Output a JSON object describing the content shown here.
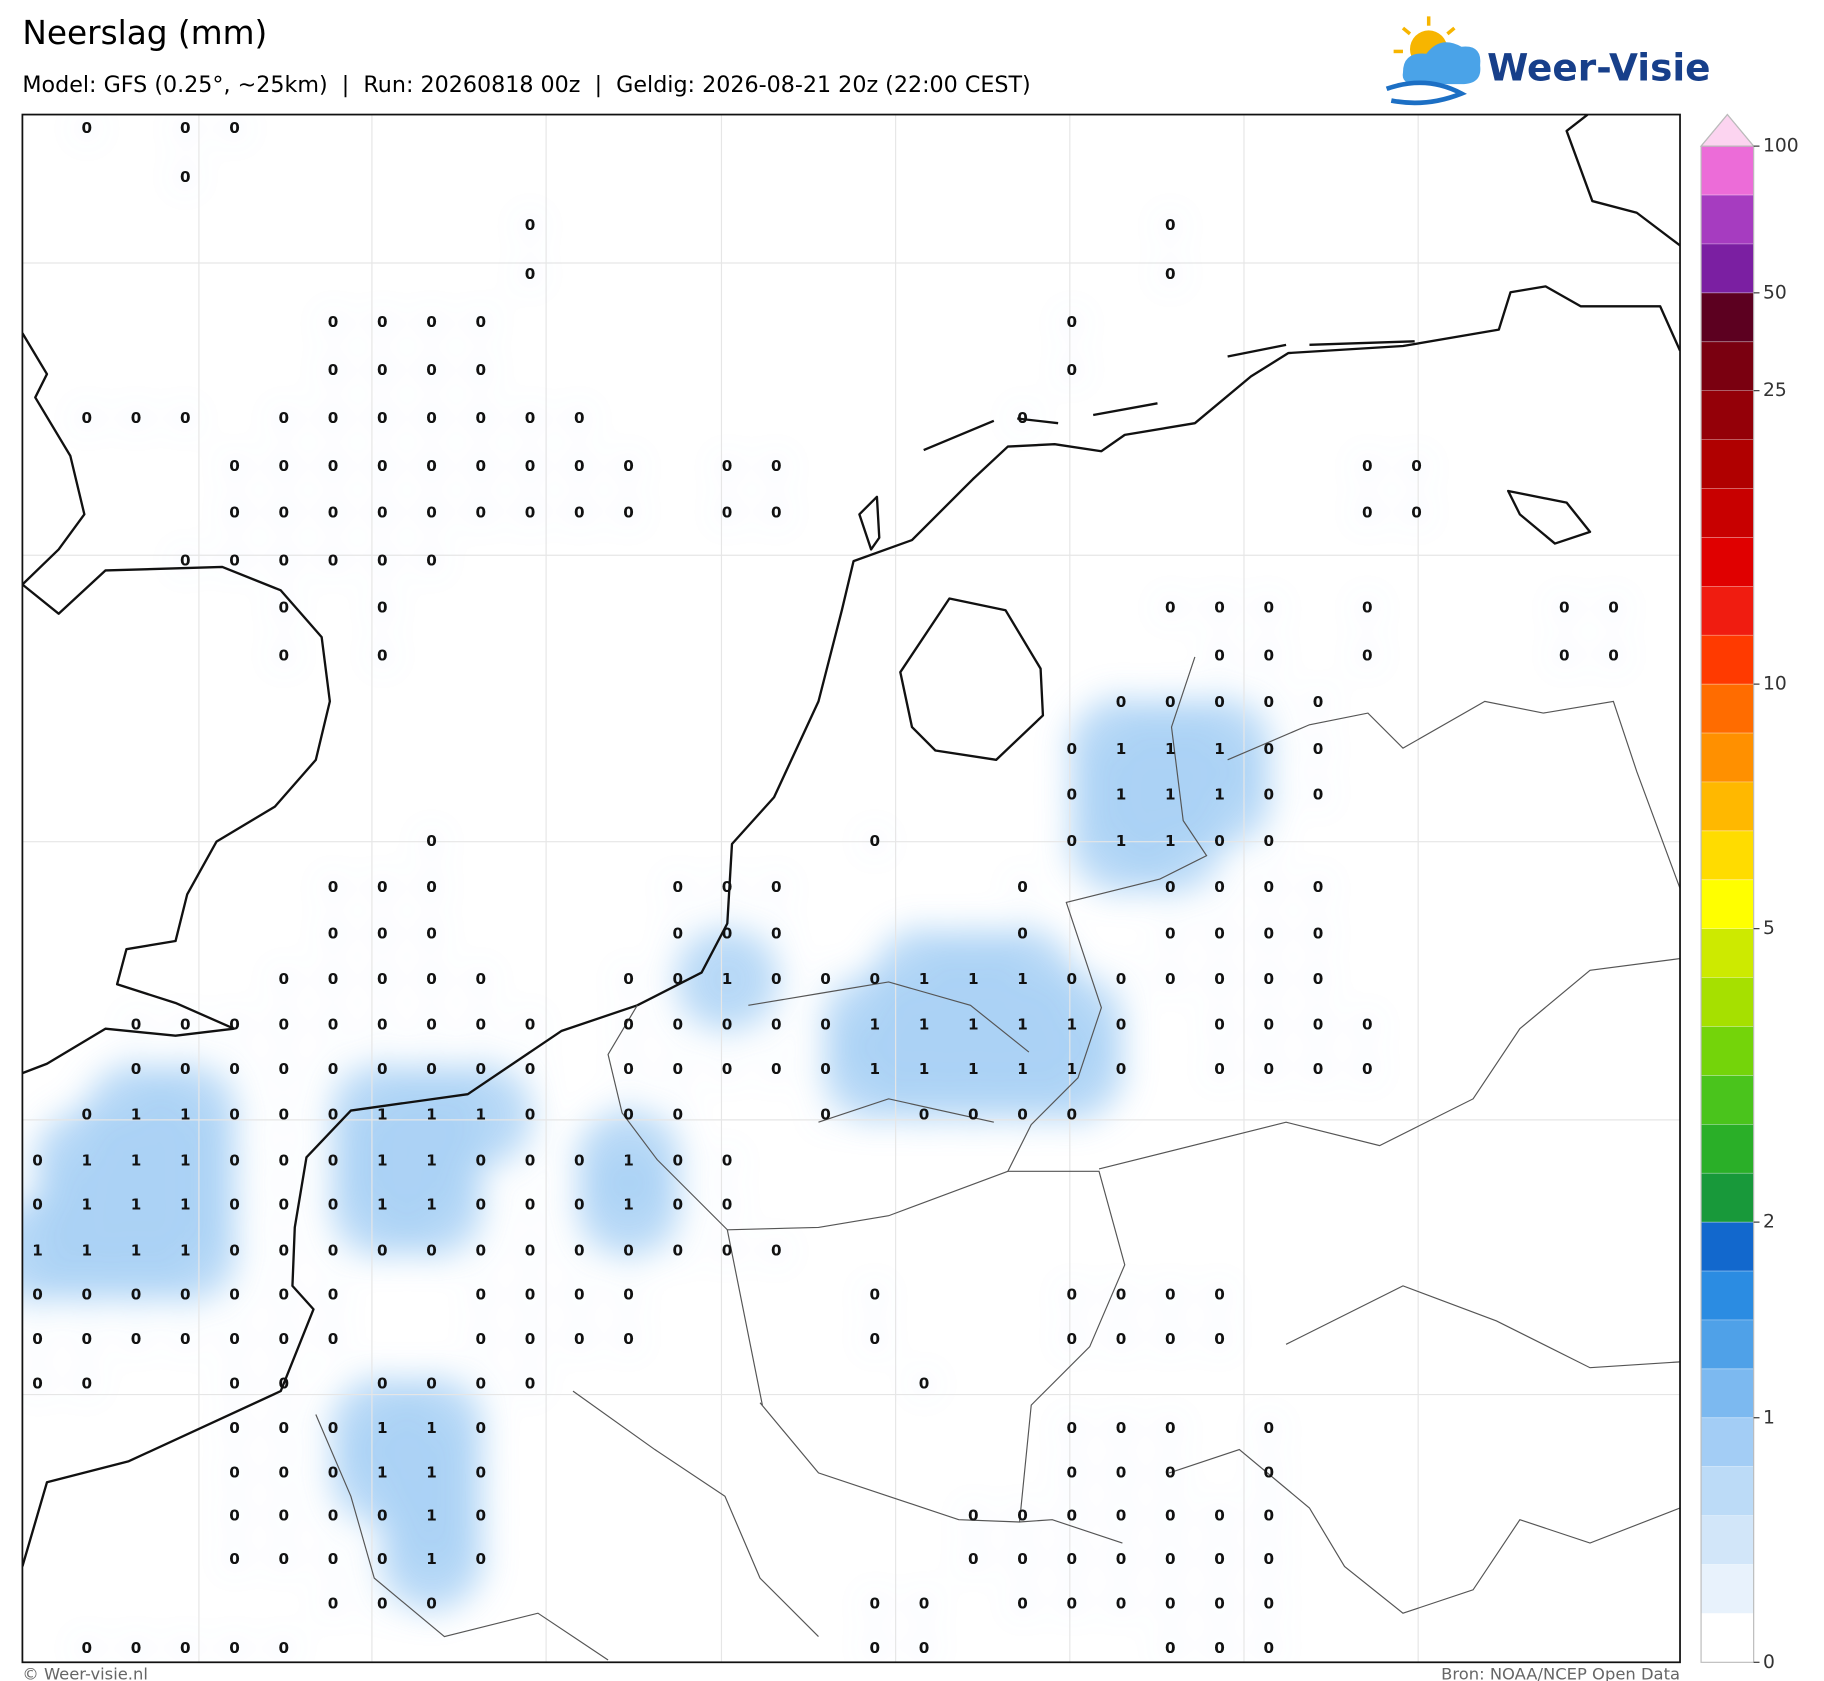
{
  "header": {
    "title": "Neerslag (mm)",
    "subtitle": "Model: GFS (0.25°, ~25km)  |  Run: 20260818 00z  |  Geldig: 2026-08-21 20z (22:00 CEST)",
    "logo": "Weer-Visie"
  },
  "footer": {
    "left": "© Weer-visie.nl",
    "right": "Bron: NOAA/NCEP Open Data"
  },
  "map": {
    "shade_color": "#8fc3f2",
    "grid": [
      [
        null,
        0,
        null,
        0,
        0,
        null,
        null,
        null,
        null,
        null,
        null,
        null,
        null,
        null,
        null,
        null,
        null,
        null,
        null,
        null,
        null,
        null,
        null,
        null,
        null,
        null,
        null,
        null,
        null,
        null,
        null,
        null,
        null
      ],
      [
        null,
        null,
        null,
        0,
        null,
        null,
        null,
        null,
        null,
        null,
        null,
        null,
        null,
        null,
        null,
        null,
        null,
        null,
        null,
        null,
        null,
        null,
        null,
        null,
        null,
        null,
        null,
        null,
        null,
        null,
        null,
        null,
        null
      ],
      [
        null,
        null,
        null,
        null,
        null,
        null,
        null,
        null,
        null,
        null,
        0,
        null,
        null,
        null,
        null,
        null,
        null,
        null,
        null,
        null,
        null,
        null,
        null,
        0,
        null,
        null,
        null,
        null,
        null,
        null,
        null,
        null,
        null
      ],
      [
        null,
        null,
        null,
        null,
        null,
        null,
        null,
        null,
        null,
        null,
        0,
        null,
        null,
        null,
        null,
        null,
        null,
        null,
        null,
        null,
        null,
        null,
        null,
        0,
        null,
        null,
        null,
        null,
        null,
        null,
        null,
        null,
        null
      ],
      [
        null,
        null,
        null,
        null,
        null,
        null,
        0,
        0,
        0,
        0,
        null,
        null,
        null,
        null,
        null,
        null,
        null,
        null,
        null,
        null,
        null,
        0,
        null,
        null,
        null,
        null,
        null,
        null,
        null,
        null,
        null,
        null,
        null
      ],
      [
        null,
        null,
        null,
        null,
        null,
        null,
        0,
        0,
        0,
        0,
        null,
        null,
        null,
        null,
        null,
        null,
        null,
        null,
        null,
        null,
        null,
        0,
        null,
        null,
        null,
        null,
        null,
        null,
        null,
        null,
        null,
        null,
        null
      ],
      [
        null,
        0,
        0,
        0,
        null,
        0,
        0,
        0,
        0,
        0,
        0,
        0,
        null,
        null,
        null,
        null,
        null,
        null,
        null,
        null,
        0,
        null,
        null,
        null,
        null,
        null,
        null,
        null,
        null,
        null,
        null,
        null,
        null
      ],
      [
        null,
        null,
        null,
        null,
        0,
        0,
        0,
        0,
        0,
        0,
        0,
        0,
        0,
        null,
        0,
        0,
        null,
        null,
        null,
        null,
        null,
        null,
        null,
        null,
        null,
        null,
        null,
        0,
        0,
        null,
        null,
        null,
        null
      ],
      [
        null,
        null,
        null,
        null,
        0,
        0,
        0,
        0,
        0,
        0,
        0,
        0,
        0,
        null,
        0,
        0,
        null,
        null,
        null,
        null,
        null,
        null,
        null,
        null,
        null,
        null,
        null,
        0,
        0,
        null,
        null,
        null,
        null
      ],
      [
        null,
        null,
        null,
        0,
        0,
        0,
        0,
        0,
        0,
        null,
        null,
        null,
        null,
        null,
        null,
        null,
        null,
        null,
        null,
        null,
        null,
        null,
        null,
        null,
        null,
        null,
        null,
        null,
        null,
        null,
        null,
        null,
        null
      ],
      [
        null,
        null,
        null,
        null,
        null,
        0,
        null,
        0,
        null,
        null,
        null,
        null,
        null,
        null,
        null,
        null,
        null,
        null,
        null,
        null,
        null,
        null,
        null,
        0,
        0,
        0,
        null,
        0,
        null,
        null,
        null,
        0,
        0
      ],
      [
        null,
        null,
        null,
        null,
        null,
        0,
        null,
        0,
        null,
        null,
        null,
        null,
        null,
        null,
        null,
        null,
        null,
        null,
        null,
        null,
        null,
        null,
        null,
        null,
        0,
        0,
        null,
        0,
        null,
        null,
        null,
        0,
        0
      ],
      [
        null,
        null,
        null,
        null,
        null,
        null,
        null,
        null,
        null,
        null,
        null,
        null,
        null,
        null,
        null,
        null,
        null,
        null,
        null,
        null,
        null,
        null,
        0,
        0,
        0,
        0,
        0,
        null,
        null,
        null,
        null,
        null,
        null
      ],
      [
        null,
        null,
        null,
        null,
        null,
        null,
        null,
        null,
        null,
        null,
        null,
        null,
        null,
        null,
        null,
        null,
        null,
        null,
        null,
        null,
        null,
        0,
        1,
        1,
        1,
        0,
        0,
        null,
        null,
        null,
        null,
        null,
        null
      ],
      [
        null,
        null,
        null,
        null,
        null,
        null,
        null,
        null,
        null,
        null,
        null,
        null,
        null,
        null,
        null,
        null,
        null,
        null,
        null,
        null,
        null,
        0,
        1,
        1,
        1,
        0,
        0,
        null,
        null,
        null,
        null,
        null,
        null
      ],
      [
        null,
        null,
        null,
        null,
        null,
        null,
        null,
        null,
        0,
        null,
        null,
        null,
        null,
        null,
        null,
        null,
        null,
        0,
        null,
        null,
        null,
        0,
        1,
        1,
        0,
        0,
        null,
        null,
        null,
        null,
        null,
        null,
        null
      ],
      [
        null,
        null,
        null,
        null,
        null,
        null,
        0,
        0,
        0,
        null,
        null,
        null,
        null,
        0,
        0,
        0,
        null,
        null,
        null,
        null,
        0,
        null,
        null,
        0,
        0,
        0,
        0,
        null,
        null,
        null,
        null,
        null,
        null
      ],
      [
        null,
        null,
        null,
        null,
        null,
        null,
        0,
        0,
        0,
        null,
        null,
        null,
        null,
        0,
        0,
        0,
        null,
        null,
        null,
        null,
        0,
        null,
        null,
        0,
        0,
        0,
        0,
        null,
        null,
        null,
        null,
        null,
        null
      ],
      [
        null,
        null,
        null,
        null,
        null,
        0,
        0,
        0,
        0,
        0,
        null,
        null,
        0,
        0,
        1,
        0,
        0,
        0,
        1,
        1,
        1,
        0,
        0,
        0,
        0,
        0,
        0,
        null,
        null,
        null,
        null,
        null,
        null
      ],
      [
        null,
        null,
        0,
        0,
        0,
        0,
        0,
        0,
        0,
        0,
        0,
        null,
        0,
        0,
        0,
        0,
        0,
        1,
        1,
        1,
        1,
        1,
        0,
        null,
        0,
        0,
        0,
        0,
        null,
        null,
        null,
        null,
        null
      ],
      [
        null,
        null,
        0,
        0,
        0,
        0,
        0,
        0,
        0,
        0,
        0,
        null,
        0,
        0,
        0,
        0,
        0,
        1,
        1,
        1,
        1,
        1,
        0,
        null,
        0,
        0,
        0,
        0,
        null,
        null,
        null,
        null,
        null
      ],
      [
        null,
        0,
        1,
        1,
        0,
        0,
        0,
        1,
        1,
        1,
        0,
        null,
        0,
        0,
        null,
        null,
        0,
        null,
        0,
        0,
        0,
        0,
        null,
        null,
        null,
        null,
        null,
        null,
        null,
        null,
        null,
        null,
        null
      ],
      [
        0,
        1,
        1,
        1,
        0,
        0,
        0,
        1,
        1,
        0,
        0,
        0,
        1,
        0,
        0,
        null,
        null,
        null,
        null,
        null,
        null,
        null,
        null,
        null,
        null,
        null,
        null,
        null,
        null,
        null,
        null,
        null,
        null
      ],
      [
        0,
        1,
        1,
        1,
        0,
        0,
        0,
        1,
        1,
        0,
        0,
        0,
        1,
        0,
        0,
        null,
        null,
        null,
        null,
        null,
        null,
        null,
        null,
        null,
        null,
        null,
        null,
        null,
        null,
        null,
        null,
        null,
        null
      ],
      [
        1,
        1,
        1,
        1,
        0,
        0,
        0,
        0,
        0,
        0,
        0,
        0,
        0,
        0,
        0,
        0,
        null,
        null,
        null,
        null,
        null,
        null,
        null,
        null,
        null,
        null,
        null,
        null,
        null,
        null,
        null,
        null,
        null
      ],
      [
        0,
        0,
        0,
        0,
        0,
        0,
        0,
        null,
        null,
        0,
        0,
        0,
        0,
        null,
        null,
        null,
        null,
        0,
        null,
        null,
        null,
        0,
        0,
        0,
        0,
        null,
        null,
        null,
        null,
        null,
        null,
        null,
        null
      ],
      [
        0,
        0,
        0,
        0,
        0,
        0,
        0,
        null,
        null,
        0,
        0,
        0,
        0,
        null,
        null,
        null,
        null,
        0,
        null,
        null,
        null,
        0,
        0,
        0,
        0,
        null,
        null,
        null,
        null,
        null,
        null,
        null,
        null
      ],
      [
        0,
        0,
        null,
        null,
        0,
        0,
        null,
        0,
        0,
        0,
        0,
        null,
        null,
        null,
        null,
        null,
        null,
        null,
        0,
        null,
        null,
        null,
        null,
        null,
        null,
        null,
        null,
        null,
        null,
        null,
        null,
        null,
        null
      ],
      [
        null,
        null,
        null,
        null,
        0,
        0,
        0,
        1,
        1,
        0,
        null,
        null,
        null,
        null,
        null,
        null,
        null,
        null,
        null,
        null,
        null,
        0,
        0,
        0,
        null,
        0,
        null,
        null,
        null,
        null,
        null,
        null,
        null
      ],
      [
        null,
        null,
        null,
        null,
        0,
        0,
        0,
        1,
        1,
        0,
        null,
        null,
        null,
        null,
        null,
        null,
        null,
        null,
        null,
        null,
        null,
        0,
        0,
        0,
        null,
        0,
        null,
        null,
        null,
        null,
        null,
        null,
        null
      ],
      [
        null,
        null,
        null,
        null,
        0,
        0,
        0,
        0,
        1,
        0,
        null,
        null,
        null,
        null,
        null,
        null,
        null,
        null,
        null,
        0,
        0,
        0,
        0,
        0,
        0,
        0,
        null,
        null,
        null,
        null,
        null,
        null
      ],
      [
        null,
        null,
        null,
        null,
        0,
        0,
        0,
        0,
        1,
        0,
        null,
        null,
        null,
        null,
        null,
        null,
        null,
        null,
        null,
        0,
        0,
        0,
        0,
        0,
        0,
        0,
        null,
        null,
        null,
        null,
        null,
        null
      ],
      [
        null,
        null,
        null,
        null,
        null,
        null,
        0,
        0,
        0,
        null,
        null,
        null,
        null,
        null,
        null,
        null,
        null,
        0,
        0,
        null,
        0,
        0,
        0,
        0,
        0,
        0,
        null,
        null,
        null,
        null,
        null,
        null,
        null
      ],
      [
        null,
        0,
        0,
        0,
        0,
        0,
        null,
        null,
        null,
        null,
        null,
        null,
        null,
        null,
        null,
        null,
        null,
        0,
        0,
        null,
        null,
        null,
        null,
        0,
        0,
        0,
        null,
        null,
        null,
        null,
        null,
        null,
        null
      ]
    ]
  },
  "colorbar": {
    "levels": [
      0,
      0.1,
      0.2,
      0.5,
      0.8,
      1,
      1.2,
      1.5,
      1.8,
      2,
      2.5,
      3,
      3.5,
      4,
      4.5,
      5,
      6,
      7,
      8,
      9,
      10,
      12,
      14,
      16,
      18,
      20,
      25,
      35,
      50,
      60,
      80,
      100
    ],
    "colors": [
      "#ffffff",
      "#e8f2fc",
      "#d2e6f9",
      "#bcdbf7",
      "#a3cdf5",
      "#7cb9f0",
      "#4fa1e8",
      "#2b8ce2",
      "#1268cd",
      "#18993a",
      "#2aaf28",
      "#4ac41c",
      "#74d40a",
      "#a6e000",
      "#cdea00",
      "#ffff00",
      "#ffdc00",
      "#ffb800",
      "#ff9000",
      "#ff6c00",
      "#ff3a00",
      "#f01c10",
      "#e00000",
      "#c80000",
      "#b00000",
      "#940008",
      "#7a0010",
      "#5c0020",
      "#7b1fa2",
      "#a63cc0",
      "#ec6cd8"
    ],
    "extend_color": "#fcd4f0",
    "ticks": [
      0,
      1,
      2,
      5,
      10,
      25,
      50,
      100
    ]
  }
}
